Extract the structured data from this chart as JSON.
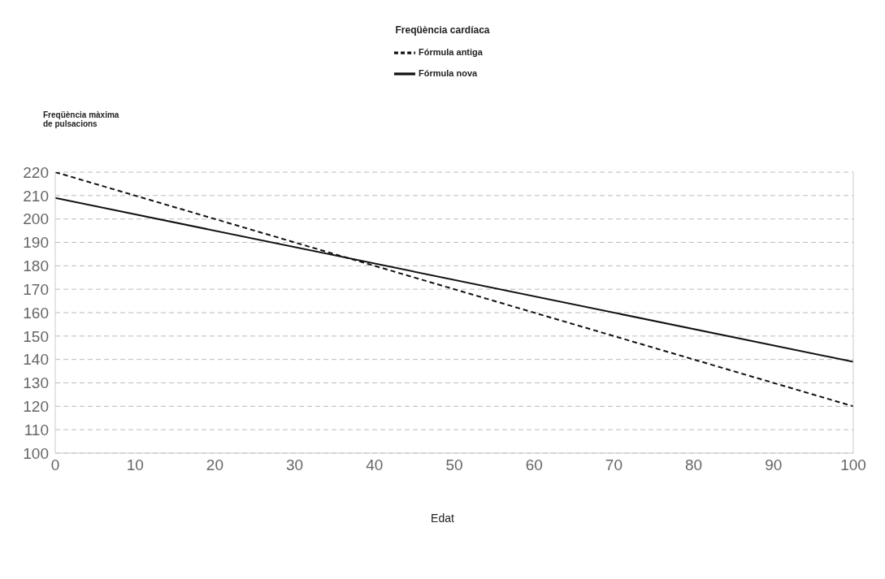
{
  "chart_data": {
    "type": "line",
    "title": "Freqüència cardíaca",
    "ylabel": "Freqüència màxima\nde pulsacions",
    "xlabel": "Edat",
    "x": [
      0,
      100
    ],
    "series": [
      {
        "name": "Fórmula antiga",
        "color": "#111111",
        "values": [
          220,
          120
        ],
        "line_style": "dashed"
      },
      {
        "name": "Fórmula nova",
        "color": "#111111",
        "values": [
          209,
          139
        ],
        "line_style": "solid"
      }
    ],
    "xlim": [
      0,
      100
    ],
    "xticks": [
      0,
      10,
      20,
      30,
      40,
      50,
      60,
      70,
      80,
      90,
      100
    ],
    "ylim": [
      100,
      220
    ],
    "yticks": [
      100,
      110,
      120,
      130,
      140,
      150,
      160,
      170,
      180,
      190,
      200,
      210,
      220
    ],
    "grid": "y",
    "legend": "top",
    "marker": "none"
  }
}
